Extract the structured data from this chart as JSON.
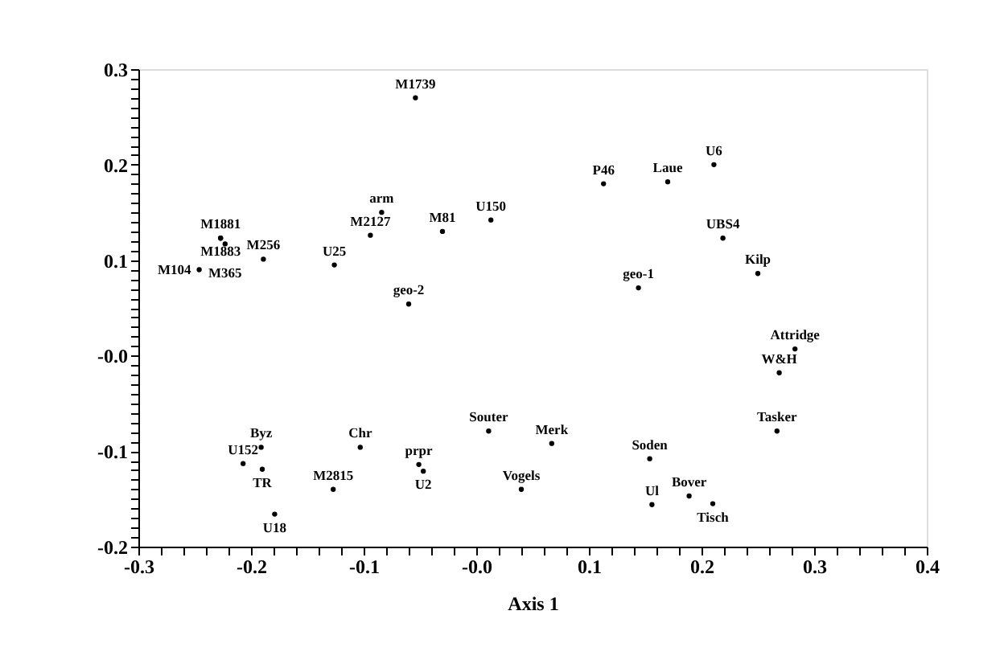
{
  "chart_data": {
    "type": "scatter",
    "xlabel": "Axis 1",
    "marker": "circle",
    "xlim": [
      -0.3,
      0.4
    ],
    "ylim": [
      -0.2,
      0.3
    ],
    "xticks": [
      -0.3,
      {
        "value": -0.28,
        "label": null
      },
      {
        "value": -0.26,
        "label": null
      },
      {
        "value": -0.24,
        "label": null
      },
      {
        "value": -0.22,
        "label": null
      },
      -0.2,
      {
        "value": -0.18,
        "label": null
      },
      {
        "value": -0.16,
        "label": null
      },
      {
        "value": -0.14,
        "label": null
      },
      {
        "value": -0.12,
        "label": null
      },
      -0.1,
      {
        "value": -0.08,
        "label": null
      },
      {
        "value": -0.06,
        "label": null
      },
      {
        "value": -0.04,
        "label": null
      },
      {
        "value": -0.02,
        "label": null
      },
      {
        "value": 0,
        "label": "-0.0"
      },
      {
        "value": 0.02,
        "label": null
      },
      {
        "value": 0.04,
        "label": null
      },
      {
        "value": 0.06,
        "label": null
      },
      {
        "value": 0.08,
        "label": null
      },
      0.1,
      {
        "value": 0.12,
        "label": null
      },
      {
        "value": 0.14,
        "label": null
      },
      {
        "value": 0.16,
        "label": null
      },
      {
        "value": 0.18,
        "label": null
      },
      0.2,
      {
        "value": 0.22,
        "label": null
      },
      {
        "value": 0.24,
        "label": null
      },
      {
        "value": 0.26,
        "label": null
      },
      {
        "value": 0.28,
        "label": null
      },
      0.3,
      {
        "value": 0.32,
        "label": null
      },
      {
        "value": 0.34,
        "label": null
      },
      {
        "value": 0.36,
        "label": null
      },
      {
        "value": 0.38,
        "label": null
      },
      0.4
    ],
    "yticks": [
      -0.2,
      {
        "value": -0.19,
        "label": null
      },
      {
        "value": -0.18,
        "label": null
      },
      {
        "value": -0.17,
        "label": null
      },
      {
        "value": -0.16,
        "label": null
      },
      {
        "value": -0.15,
        "label": null
      },
      {
        "value": -0.14,
        "label": null
      },
      {
        "value": -0.13,
        "label": null
      },
      {
        "value": -0.12,
        "label": null
      },
      {
        "value": -0.11,
        "label": null
      },
      -0.1,
      {
        "value": -0.09,
        "label": null
      },
      {
        "value": -0.08,
        "label": null
      },
      {
        "value": -0.07,
        "label": null
      },
      {
        "value": -0.06,
        "label": null
      },
      {
        "value": -0.05,
        "label": null
      },
      {
        "value": -0.04,
        "label": null
      },
      {
        "value": -0.03,
        "label": null
      },
      {
        "value": -0.02,
        "label": null
      },
      {
        "value": -0.01,
        "label": null
      },
      {
        "value": 0,
        "label": "-0.0"
      },
      {
        "value": 0.01,
        "label": null
      },
      {
        "value": 0.02,
        "label": null
      },
      {
        "value": 0.03,
        "label": null
      },
      {
        "value": 0.04,
        "label": null
      },
      {
        "value": 0.05,
        "label": null
      },
      {
        "value": 0.06,
        "label": null
      },
      {
        "value": 0.07,
        "label": null
      },
      {
        "value": 0.08,
        "label": null
      },
      {
        "value": 0.09,
        "label": null
      },
      0.1,
      {
        "value": 0.11,
        "label": null
      },
      {
        "value": 0.12,
        "label": null
      },
      {
        "value": 0.13,
        "label": null
      },
      {
        "value": 0.14,
        "label": null
      },
      {
        "value": 0.15,
        "label": null
      },
      {
        "value": 0.16,
        "label": null
      },
      {
        "value": 0.17,
        "label": null
      },
      {
        "value": 0.18,
        "label": null
      },
      {
        "value": 0.19,
        "label": null
      },
      0.2,
      {
        "value": 0.21,
        "label": null
      },
      {
        "value": 0.22,
        "label": null
      },
      {
        "value": 0.23,
        "label": null
      },
      {
        "value": 0.24,
        "label": null
      },
      {
        "value": 0.25,
        "label": null
      },
      {
        "value": 0.26,
        "label": null
      },
      {
        "value": 0.27,
        "label": null
      },
      {
        "value": 0.28,
        "label": null
      },
      {
        "value": 0.29,
        "label": null
      },
      0.3
    ],
    "series": [
      {
        "color": "#000000",
        "x": [
          -0.054,
          -0.084,
          -0.094,
          -0.03,
          0.013,
          -0.227,
          -0.227,
          -0.223,
          -0.189,
          -0.246,
          -0.126,
          -0.06,
          0.113,
          0.17,
          0.211,
          0.219,
          0.25,
          0.144,
          0.283,
          0.269,
          0.267,
          0.011,
          0.067,
          0.154,
          0.04,
          0.156,
          0.189,
          0.21,
          -0.191,
          -0.103,
          -0.207,
          -0.19,
          -0.051,
          -0.047,
          -0.127,
          -0.179
        ],
        "values": [
          0.27,
          0.15,
          0.126,
          0.13,
          0.142,
          0.123,
          0.123,
          0.117,
          0.101,
          0.09,
          0.095,
          0.054,
          0.18,
          0.182,
          0.2,
          0.123,
          0.086,
          0.071,
          0.007,
          -0.018,
          -0.079,
          -0.079,
          -0.092,
          -0.108,
          -0.14,
          -0.156,
          -0.147,
          -0.155,
          -0.096,
          -0.096,
          -0.113,
          -0.119,
          -0.114,
          -0.121,
          -0.14,
          -0.166
        ],
        "value_labels": [
          "M1739",
          "arm",
          "M2127",
          "M81",
          "U150",
          "M1881",
          "M1883",
          "M365",
          "M256",
          "M104",
          "U25",
          "geo-2",
          "P46",
          "Laue",
          "U6",
          "UBS4",
          "Kilp",
          "geo-1",
          "Attridge",
          "W&H",
          "Tasker",
          "Souter",
          "Merk",
          "Soden",
          "Vogels",
          "Ul",
          "Bover",
          "Tisch",
          "Byz",
          "Chr",
          "U152",
          "TR",
          "prpr",
          "U2",
          "M2815",
          "U18"
        ]
      }
    ]
  }
}
